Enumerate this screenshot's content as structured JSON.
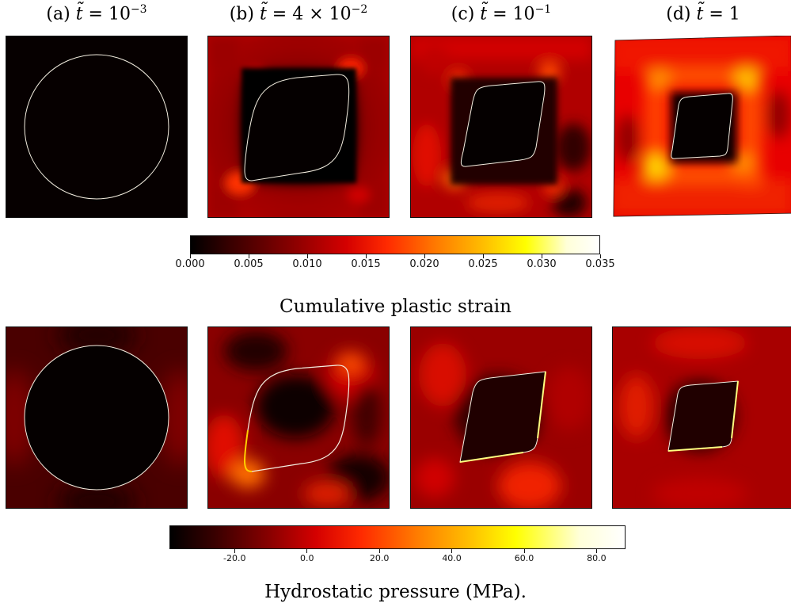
{
  "panels": [
    {
      "label": "(a)",
      "time": "10",
      "exp": "−3"
    },
    {
      "label": "(b)",
      "time": "4 × 10",
      "exp": "−2"
    },
    {
      "label": "(c)",
      "time": "10",
      "exp": "−1"
    },
    {
      "label": "(d)",
      "time": "1",
      "exp": ""
    }
  ],
  "time_symbol": "t̃",
  "strain_colorbar": {
    "ticks": [
      "0.000",
      "0.005",
      "0.010",
      "0.015",
      "0.020",
      "0.025",
      "0.030",
      "0.035"
    ],
    "caption": "Cumulative plastic strain",
    "range": [
      0.0,
      0.035
    ]
  },
  "pressure_colorbar": {
    "ticks": [
      "-20.0",
      "0.0",
      "20.0",
      "40.0",
      "60.0",
      "80.0"
    ],
    "caption": "Hydrostatic pressure (MPa).",
    "range": [
      -38,
      88
    ]
  },
  "colormap": [
    "#000000",
    "#3a0000",
    "#8a0000",
    "#d40000",
    "#ff2a00",
    "#ff7a00",
    "#ffc000",
    "#ffff00",
    "#ffffd8",
    "#ffffff"
  ]
}
